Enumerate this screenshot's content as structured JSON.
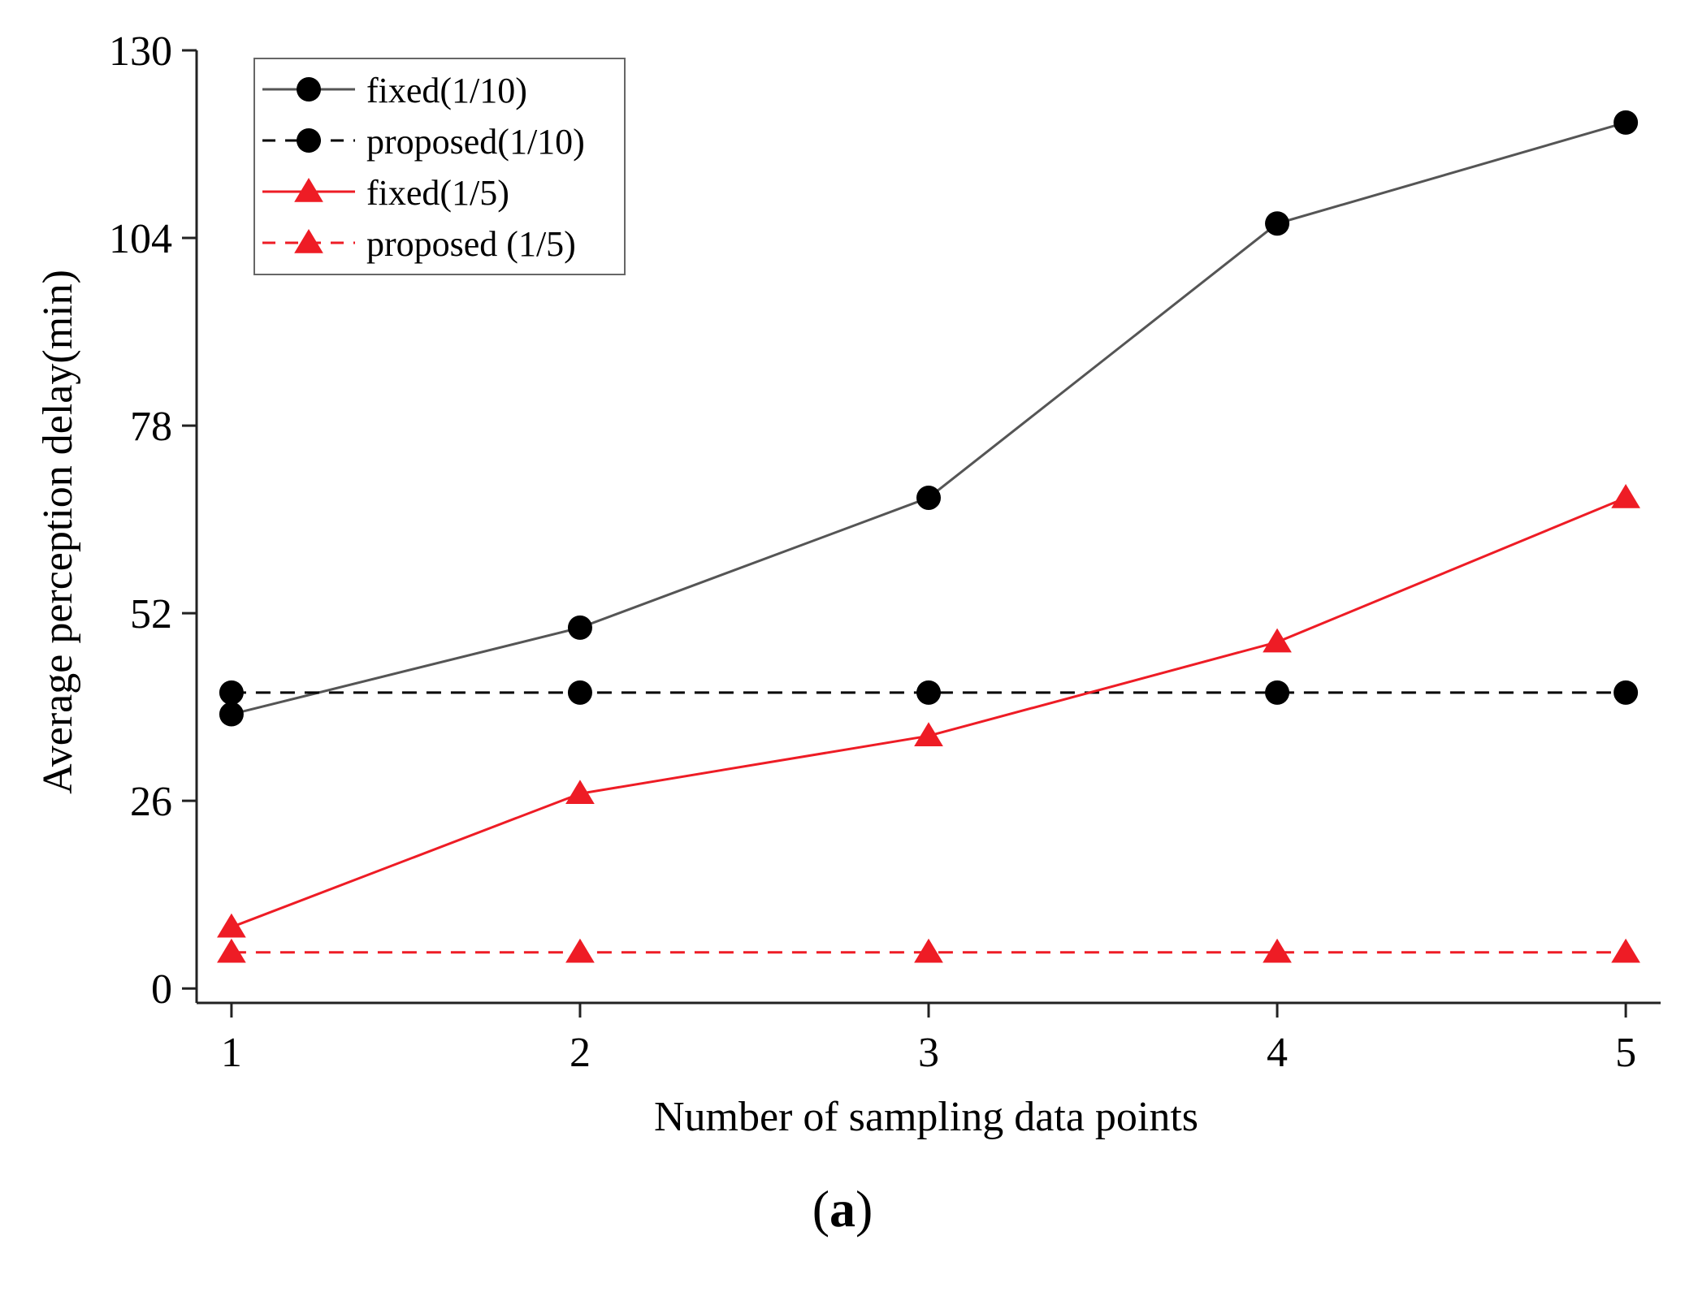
{
  "chart_data": {
    "type": "line",
    "title": "",
    "xlabel": "Number of sampling data points",
    "ylabel": "Average perception delay(min)",
    "x": [
      1,
      2,
      3,
      4,
      5
    ],
    "xlim": [
      0.9,
      5.1
    ],
    "ylim": [
      -2,
      130
    ],
    "xticks": [
      "1",
      "2",
      "3",
      "4",
      "5"
    ],
    "yticks": [
      0,
      26,
      52,
      78,
      104,
      130
    ],
    "legend_position": "top-left",
    "series": [
      {
        "name": "fixed(1/10)",
        "values": [
          38,
          50,
          68,
          106,
          120
        ],
        "color": "#555555",
        "line": "solid",
        "marker": "circle",
        "marker_color": "#000000"
      },
      {
        "name": "proposed(1/10)",
        "values": [
          41,
          41,
          41,
          41,
          41
        ],
        "color": "#000000",
        "line": "dashed",
        "marker": "circle",
        "marker_color": "#000000"
      },
      {
        "name": "fixed(1/5)",
        "values": [
          8.5,
          27,
          35,
          48,
          68
        ],
        "color": "#ee1c25",
        "line": "solid",
        "marker": "triangle",
        "marker_color": "#ee1c25"
      },
      {
        "name": "proposed (1/5)",
        "values": [
          5,
          5,
          5,
          5,
          5
        ],
        "color": "#ee1c25",
        "line": "dashed",
        "marker": "triangle",
        "marker_color": "#ee1c25"
      }
    ]
  },
  "caption": {
    "open": "(",
    "letter": "a",
    "close": ")"
  }
}
